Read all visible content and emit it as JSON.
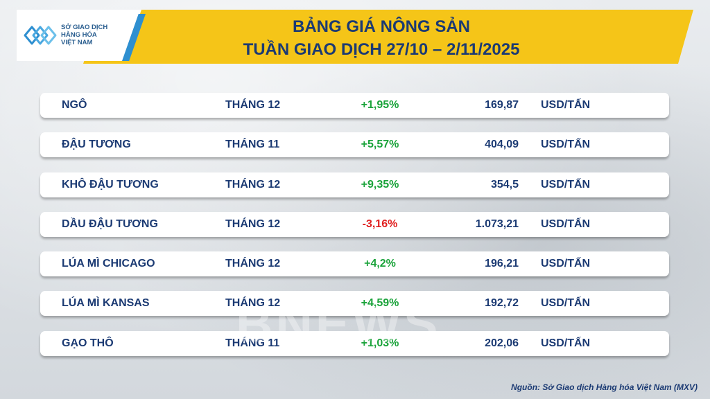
{
  "logo": {
    "lines": [
      "SỞ GIAO DỊCH",
      "HÀNG HÓA",
      "VIỆT NAM"
    ]
  },
  "title": {
    "line1": "BẢNG GIÁ NÔNG SẢN",
    "line2": "TUẦN GIAO DỊCH 27/10 – 2/11/2025"
  },
  "rows": [
    {
      "name": "NGÔ",
      "month": "THÁNG 12",
      "change": "+1,95%",
      "price": "169,87",
      "unit": "USD/TẤN",
      "direction": "up"
    },
    {
      "name": "ĐẬU TƯƠNG",
      "month": "THÁNG 11",
      "change": "+5,57%",
      "price": "404,09",
      "unit": "USD/TẤN",
      "direction": "up"
    },
    {
      "name": "KHÔ ĐẬU TƯƠNG",
      "month": "THÁNG 12",
      "change": "+9,35%",
      "price": "354,5",
      "unit": "USD/TẤN",
      "direction": "up"
    },
    {
      "name": "DẦU ĐẬU TƯƠNG",
      "month": "THÁNG 12",
      "change": "-3,16%",
      "price": "1.073,21",
      "unit": "USD/TẤN",
      "direction": "down"
    },
    {
      "name": "LÚA MÌ CHICAGO",
      "month": "THÁNG 12",
      "change": "+4,2%",
      "price": "196,21",
      "unit": "USD/TẤN",
      "direction": "up"
    },
    {
      "name": "LÚA MÌ KANSAS",
      "month": "THÁNG 12",
      "change": "+4,59%",
      "price": "192,72",
      "unit": "USD/TẤN",
      "direction": "up"
    },
    {
      "name": "GẠO THÔ",
      "month": "THÁNG 11",
      "change": "+1,03%",
      "price": "202,06",
      "unit": "USD/TẤN",
      "direction": "up"
    }
  ],
  "colors": {
    "header_band": "#f5c518",
    "title_text": "#1b3a73",
    "positive": "#1aa33a",
    "negative": "#e02020",
    "logo_accent": "#2e8fd0"
  },
  "watermark": "BNEWS",
  "source": "Nguồn: Sở Giao dịch Hàng hóa Việt Nam (MXV)"
}
